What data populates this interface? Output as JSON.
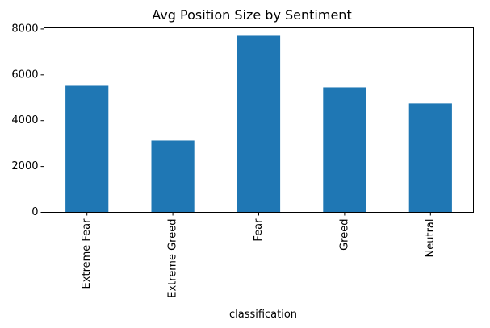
{
  "chart_data": {
    "type": "bar",
    "title": "Avg Position Size by Sentiment",
    "xlabel": "classification",
    "ylabel": "",
    "categories": [
      "Extreme Fear",
      "Extreme Greed",
      "Fear",
      "Greed",
      "Neutral"
    ],
    "values": [
      5520,
      3130,
      7700,
      5450,
      4750
    ],
    "ylim": [
      0,
      8050
    ],
    "yticks": [
      0,
      2000,
      4000,
      6000,
      8000
    ],
    "ytick_labels": [
      "0",
      "2000",
      "4000",
      "6000",
      "8000"
    ],
    "bar_color": "#1f77b4",
    "grid": false,
    "legend": "none"
  }
}
